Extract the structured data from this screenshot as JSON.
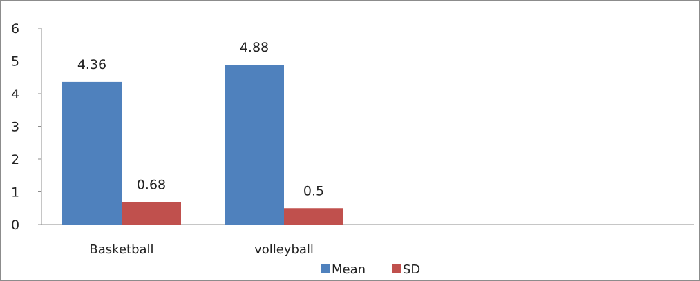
{
  "chart_data": {
    "type": "bar",
    "categories": [
      "Basketball",
      "volleyball"
    ],
    "series": [
      {
        "name": "Mean",
        "values": [
          4.36,
          4.88
        ],
        "color": "#4f81bd"
      },
      {
        "name": "SD",
        "values": [
          0.68,
          0.5
        ],
        "color": "#c0504d"
      }
    ],
    "data_labels": [
      [
        "4.36",
        "4.88"
      ],
      [
        "0.68",
        "0.5"
      ]
    ],
    "ylim": [
      0,
      6
    ],
    "yticks": [
      0,
      1,
      2,
      3,
      4,
      5,
      6
    ],
    "grid": false,
    "legend_position": "bottom",
    "title": "",
    "xlabel": "",
    "ylabel": ""
  }
}
